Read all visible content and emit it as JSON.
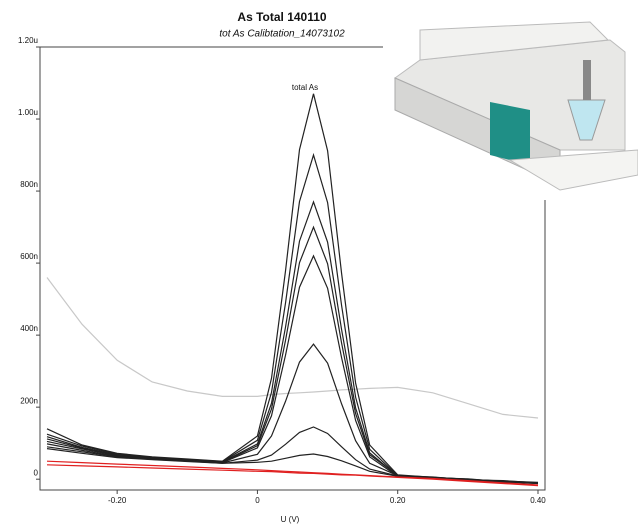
{
  "chart_data": {
    "type": "line",
    "title": "As Total 140110",
    "subtitle": "tot As  Calibtation_14073102",
    "annotation": "total As",
    "xlabel": "U (V)",
    "x": [
      -0.3,
      -0.25,
      -0.2,
      -0.15,
      -0.1,
      -0.05,
      0,
      0.02,
      0.04,
      0.06,
      0.08,
      0.1,
      0.12,
      0.14,
      0.16,
      0.2,
      0.25,
      0.3,
      0.35,
      0.4
    ],
    "series": [
      {
        "color": "#c8c8c8",
        "values": [
          560,
          430,
          330,
          270,
          245,
          230,
          230,
          235,
          238,
          240,
          242,
          245,
          248,
          250,
          252,
          255,
          240,
          210,
          180,
          170
        ]
      },
      {
        "color": "#222222",
        "values": [
          140,
          95,
          72,
          62,
          56,
          50,
          120,
          280,
          578,
          915,
          1070,
          912,
          571,
          267,
          95,
          12,
          5,
          0,
          -6,
          -12
        ]
      },
      {
        "color": "#222222",
        "values": [
          125,
          92,
          70,
          60,
          55,
          49,
          108,
          241,
          489,
          771,
          900,
          768,
          482,
          228,
          83,
          10,
          6,
          -2,
          -4,
          -10
        ]
      },
      {
        "color": "#222222",
        "values": [
          118,
          88,
          68,
          59,
          54,
          48,
          98,
          211,
          422,
          661,
          770,
          658,
          415,
          198,
          73,
          9,
          4,
          1,
          -7,
          -11
        ]
      },
      {
        "color": "#222222",
        "values": [
          112,
          86,
          66,
          58,
          53,
          47,
          93,
          195,
          385,
          601,
          700,
          598,
          378,
          182,
          68,
          11,
          3,
          -1,
          -5,
          -9
        ]
      },
      {
        "color": "#222222",
        "values": [
          105,
          84,
          65,
          57,
          52,
          46,
          87,
          176,
          344,
          533,
          620,
          530,
          337,
          163,
          62,
          8,
          5,
          0,
          -8,
          -12
        ]
      },
      {
        "color": "#222222",
        "values": [
          98,
          80,
          63,
          56,
          51,
          45,
          69,
          120,
          216,
          325,
          375,
          322,
          209,
          107,
          44,
          10,
          2,
          -3,
          -6,
          -10
        ]
      },
      {
        "color": "#222222",
        "values": [
          90,
          76,
          62,
          55,
          50,
          44,
          53,
          67,
          97,
          130,
          145,
          127,
          90,
          54,
          28,
          9,
          4,
          -2,
          -5,
          -11
        ]
      },
      {
        "color": "#222222",
        "values": [
          85,
          72,
          60,
          54,
          49,
          44,
          47,
          50,
          58,
          66,
          70,
          63,
          51,
          37,
          22,
          8,
          3,
          -1,
          -6,
          -10
        ]
      },
      {
        "color": "#e02020",
        "values": [
          50,
          46,
          42,
          38,
          34,
          30,
          26,
          24,
          22,
          20,
          18,
          16,
          14,
          12,
          10,
          6,
          2,
          -4,
          -10,
          -16
        ]
      },
      {
        "color": "#e02020",
        "values": [
          40,
          37,
          34,
          31,
          28,
          25,
          22,
          21,
          19,
          17,
          16,
          14,
          12,
          11,
          9,
          5,
          0,
          -6,
          -12,
          -18
        ]
      }
    ],
    "xlim": [
      -0.31,
      0.41
    ],
    "ylim": [
      -30,
      1200
    ],
    "xticks": [
      {
        "value": -0.2,
        "label": "-0.20"
      },
      0,
      {
        "value": 0.2,
        "label": "0.20"
      },
      {
        "value": 0.4,
        "label": "0.40"
      }
    ],
    "yticks": [
      0,
      {
        "value": 200,
        "label": "200n"
      },
      {
        "value": 400,
        "label": "400n"
      },
      {
        "value": 600,
        "label": "600n"
      },
      {
        "value": 800,
        "label": "800n"
      },
      {
        "value": 1000,
        "label": "1.00u"
      },
      {
        "value": 1200,
        "label": "1.20u"
      }
    ]
  }
}
